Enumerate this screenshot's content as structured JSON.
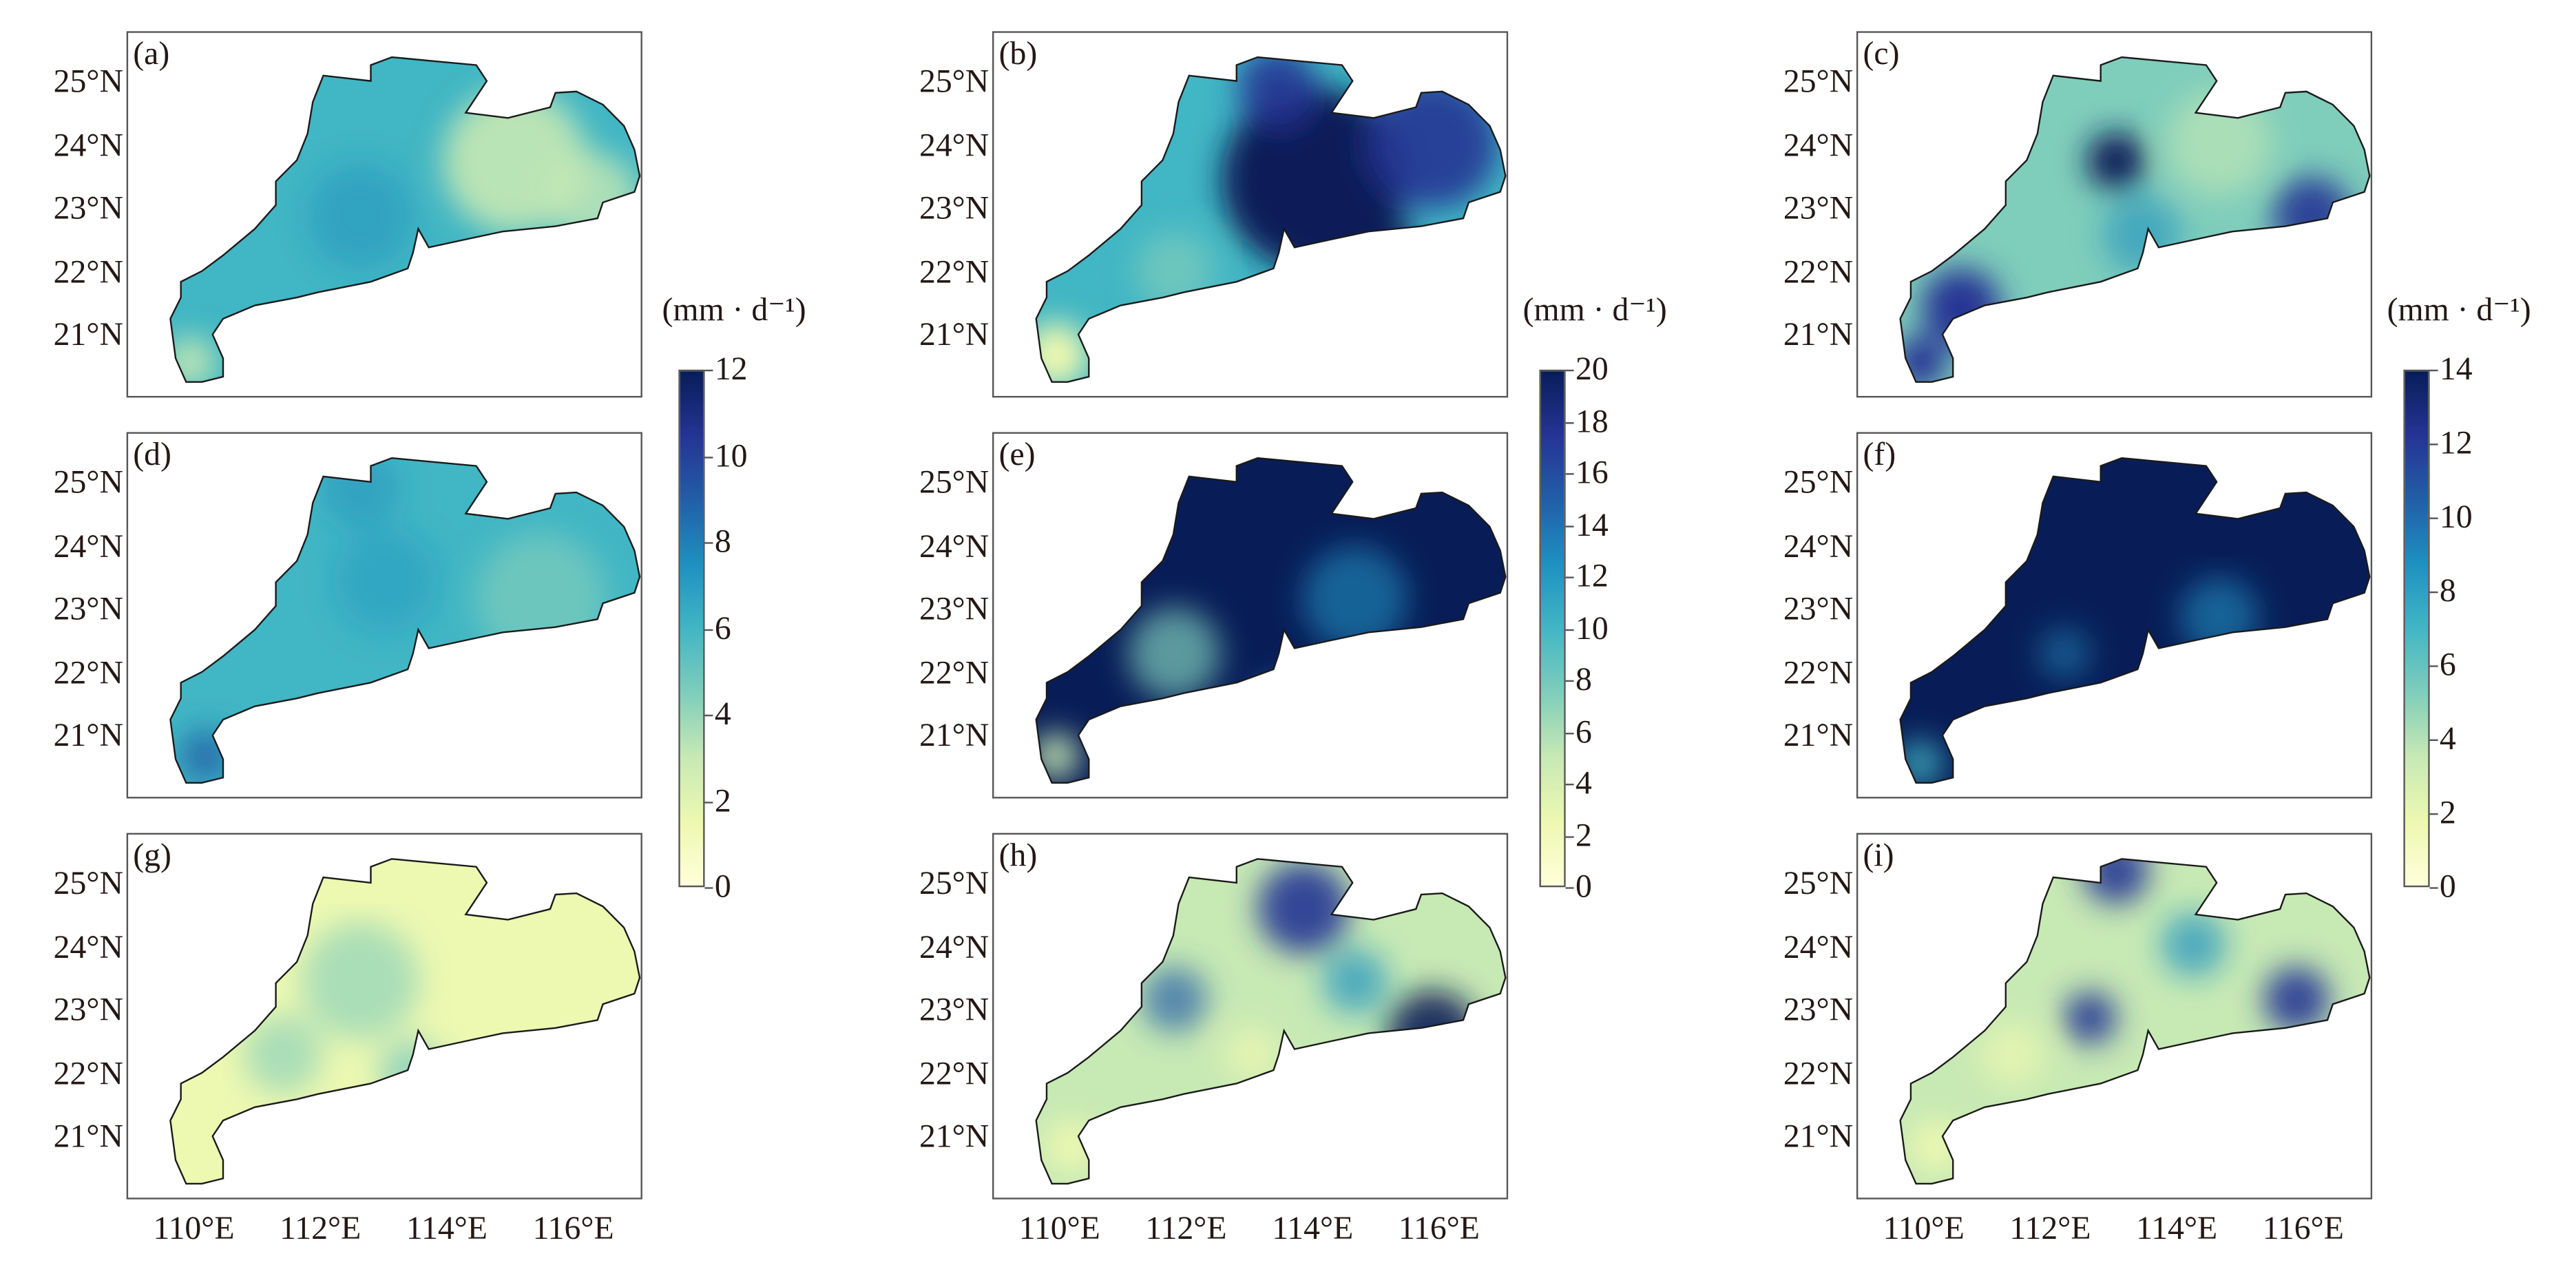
{
  "chart_data": {
    "type": "heatmap",
    "title": "",
    "panels": [
      {
        "label": "(a)"
      },
      {
        "label": "(b)"
      },
      {
        "label": "(c)"
      },
      {
        "label": "(d)"
      },
      {
        "label": "(e)"
      },
      {
        "label": "(f)"
      },
      {
        "label": "(g)"
      },
      {
        "label": "(h)"
      },
      {
        "label": "(i)"
      }
    ],
    "lat_ticks": [
      "25°N",
      "24°N",
      "23°N",
      "22°N",
      "21°N"
    ],
    "lon_ticks": [
      "110°E",
      "112°E",
      "114°E",
      "116°E"
    ],
    "lat_values": [
      25,
      24,
      23,
      22,
      21
    ],
    "lon_values": [
      110,
      112,
      114,
      116
    ],
    "colormap": [
      "#ffffd9",
      "#edf8b1",
      "#c7e9b4",
      "#7fcdbb",
      "#41b6c4",
      "#1d91c0",
      "#225ea8",
      "#253494",
      "#081d58"
    ],
    "colorbars": [
      {
        "label": "(mm · d⁻¹)",
        "range": [
          0,
          12
        ],
        "ticks": [
          "0",
          "2",
          "4",
          "6",
          "8",
          "10",
          "12"
        ]
      },
      {
        "label": "(mm · d⁻¹)",
        "range": [
          0,
          20
        ],
        "ticks": [
          "0",
          "2",
          "4",
          "6",
          "8",
          "10",
          "12",
          "14",
          "16",
          "18",
          "20"
        ]
      },
      {
        "label": "(mm · d⁻¹)",
        "range": [
          0,
          14
        ],
        "ticks": [
          "0",
          "2",
          "4",
          "6",
          "8",
          "10",
          "12",
          "14"
        ]
      }
    ]
  }
}
